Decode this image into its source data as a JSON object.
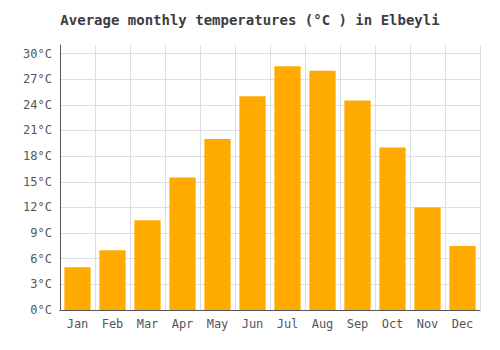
{
  "chart_data": {
    "type": "bar",
    "title": "Average monthly temperatures (°C ) in Elbeyli",
    "categories": [
      "Jan",
      "Feb",
      "Mar",
      "Apr",
      "May",
      "Jun",
      "Jul",
      "Aug",
      "Sep",
      "Oct",
      "Nov",
      "Dec"
    ],
    "values": [
      5.0,
      7.0,
      10.5,
      15.5,
      20.0,
      25.0,
      28.5,
      28.0,
      24.5,
      19.0,
      12.0,
      7.5
    ],
    "color": "#FFAA00",
    "ylim": [
      0,
      31
    ],
    "yticks": [
      {
        "value": 0,
        "label": "0°C"
      },
      {
        "value": 3,
        "label": "3°C"
      },
      {
        "value": 6,
        "label": "6°C"
      },
      {
        "value": 9,
        "label": "9°C"
      },
      {
        "value": 12,
        "label": "12°C"
      },
      {
        "value": 15,
        "label": "15°C"
      },
      {
        "value": 18,
        "label": "18°C"
      },
      {
        "value": 21,
        "label": "21°C"
      },
      {
        "value": 24,
        "label": "24°C"
      },
      {
        "value": 27,
        "label": "27°C"
      },
      {
        "value": 30,
        "label": "30°C"
      }
    ],
    "grid": true
  }
}
